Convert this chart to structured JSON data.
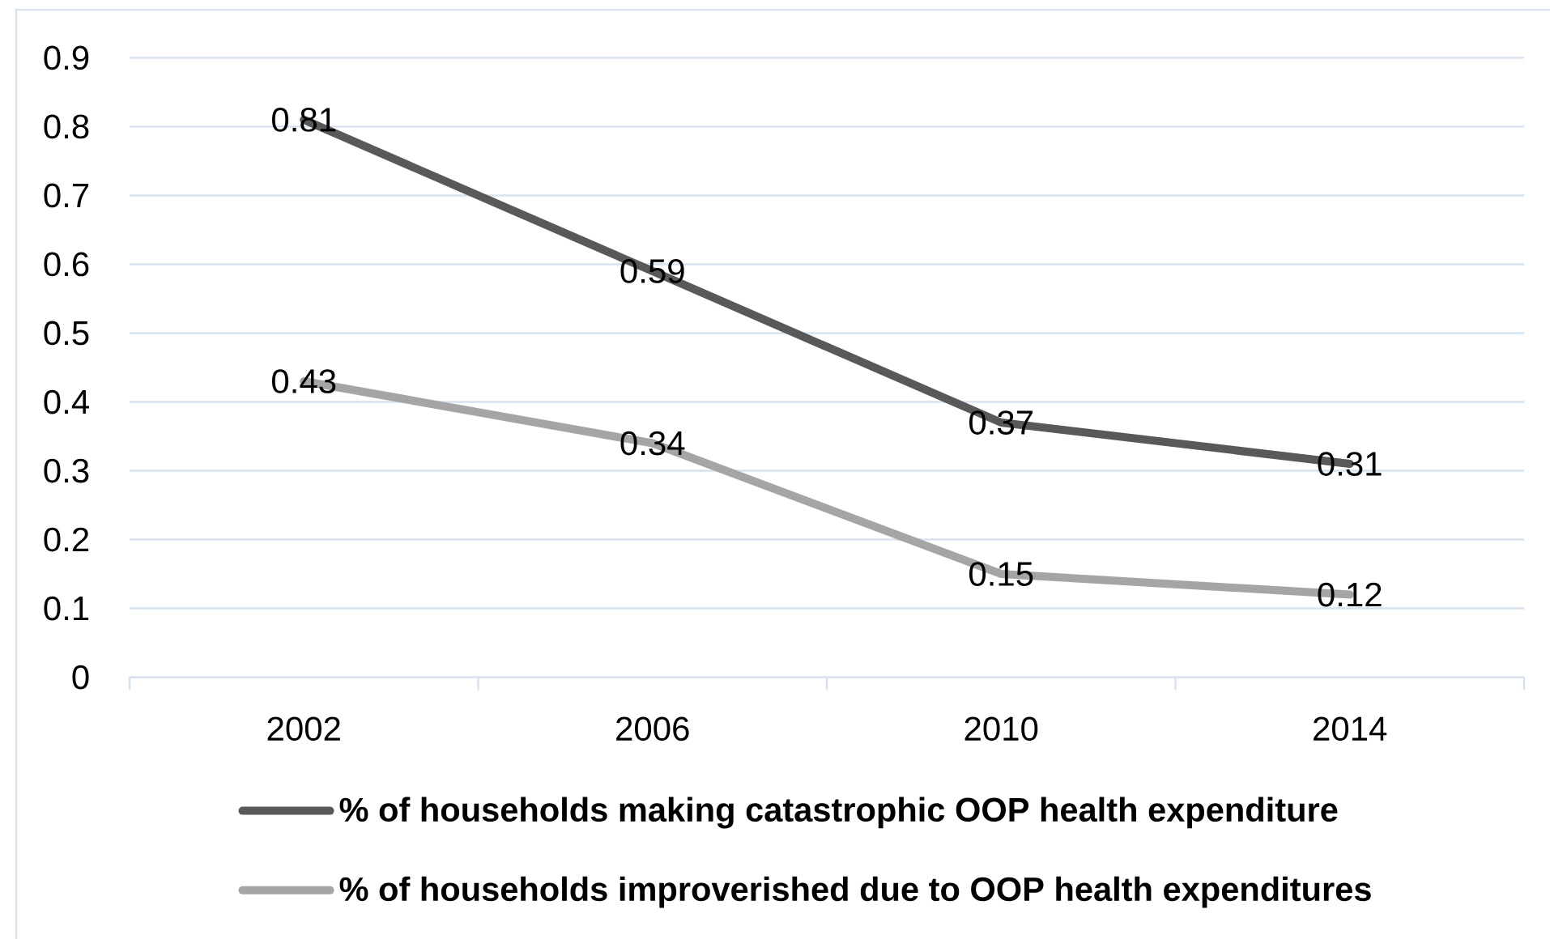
{
  "chart_data": {
    "type": "line",
    "categories": [
      "2002",
      "2006",
      "2010",
      "2014"
    ],
    "series": [
      {
        "name": "% of households making catastrophic OOP health expenditure",
        "color": "#595959",
        "values": [
          0.81,
          0.59,
          0.37,
          0.31
        ]
      },
      {
        "name": "% of households improverished due to OOP health expenditures",
        "color": "#a5a5a5",
        "values": [
          0.43,
          0.34,
          0.15,
          0.12
        ]
      }
    ],
    "ylim": [
      0,
      0.9
    ],
    "yticks": [
      0,
      0.1,
      0.2,
      0.3,
      0.4,
      0.5,
      0.6,
      0.7,
      0.8,
      0.9
    ],
    "grid": "y",
    "legend": "bottom",
    "data_labels": true
  }
}
